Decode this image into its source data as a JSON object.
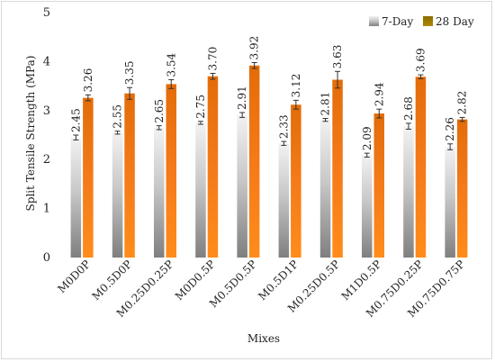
{
  "chart_data": {
    "type": "bar",
    "title": "",
    "xlabel": "Mixes",
    "ylabel": "Split Tensile Strength (MPa)",
    "ylim": [
      0,
      5
    ],
    "yticks": [
      "0",
      "1",
      "2",
      "3",
      "4",
      "5"
    ],
    "grid": false,
    "legend_position": "top-right",
    "categories": [
      "M0D0P",
      "M0.5D0P",
      "M0.25D0.25P",
      "M0D0.5P",
      "M0.5D0.5P",
      "M0.5D1P",
      "M0.25D0.5P",
      "M1D0.5P",
      "M0.75D0.25P",
      "M0.75D0.75P"
    ],
    "series": [
      {
        "name": "7-Day",
        "color": "#a6a6a6",
        "values": [
          2.45,
          2.55,
          2.65,
          2.75,
          2.91,
          2.33,
          2.81,
          2.09,
          2.68,
          2.26
        ],
        "labels": [
          "2.45",
          "2.55",
          "2.65",
          "2.75",
          "2.91",
          "2.33",
          "2.81",
          "2.09",
          "2.68",
          "2.26"
        ],
        "errors": [
          0.05,
          0.03,
          0.04,
          0.03,
          0.05,
          0.04,
          0.03,
          0.04,
          0.06,
          0.06
        ]
      },
      {
        "name": "28 Day",
        "color": "#e36c09",
        "values": [
          3.26,
          3.35,
          3.54,
          3.7,
          3.92,
          3.12,
          3.63,
          2.94,
          3.69,
          2.82
        ],
        "labels": [
          "3.26",
          "3.35",
          "3.54",
          "3.70",
          "3.92",
          "3.12",
          "3.63",
          "2.94",
          "3.69",
          "2.82"
        ],
        "errors": [
          0.06,
          0.12,
          0.09,
          0.06,
          0.06,
          0.09,
          0.17,
          0.09,
          0.04,
          0.04
        ]
      }
    ]
  }
}
